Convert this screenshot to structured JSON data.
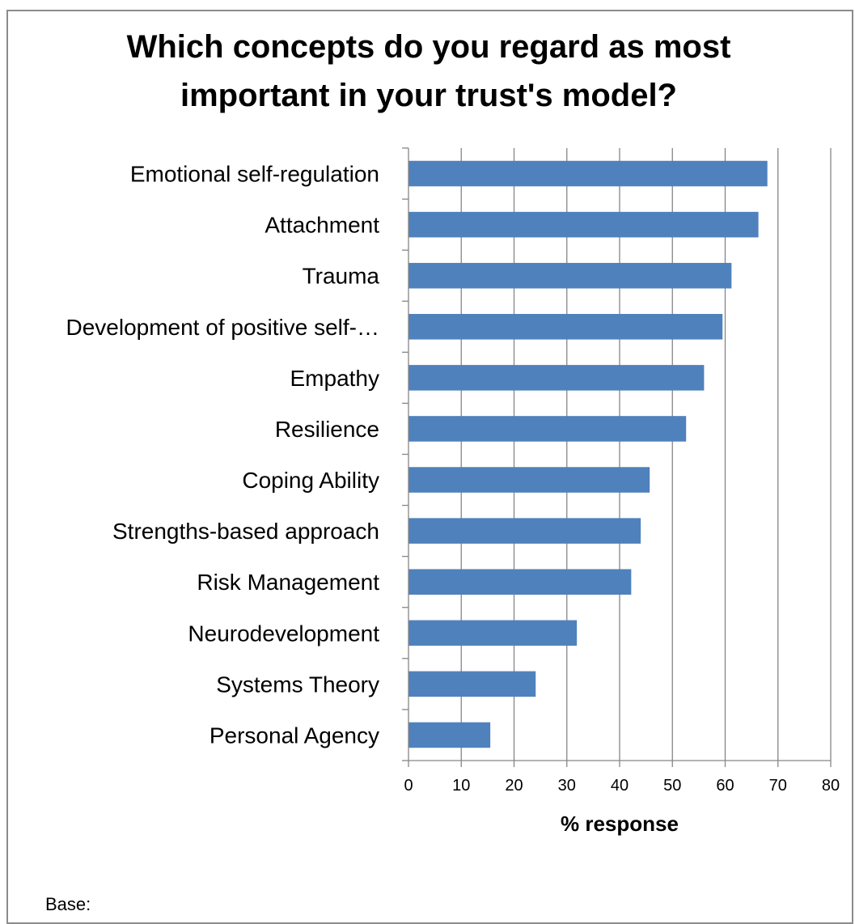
{
  "chart_data": {
    "type": "bar",
    "orientation": "horizontal",
    "title": "Which concepts do you regard as most important in your trust's model?",
    "xlabel": "% response",
    "ylabel": "",
    "xlim": [
      0,
      80
    ],
    "xticks": [
      "0",
      "10",
      "20",
      "30",
      "40",
      "50",
      "60",
      "70",
      "80"
    ],
    "grid": "vertical",
    "categories": [
      "Emotional self-regulation",
      "Attachment",
      "Trauma",
      "Development of positive self-…",
      "Empathy",
      "Resilience",
      "Coping Ability",
      "Strengths-based approach",
      "Risk Management",
      "Neurodevelopment",
      "Systems Theory",
      "Personal Agency"
    ],
    "values": [
      68,
      66.3,
      61.2,
      59.5,
      56,
      52.6,
      45.7,
      44,
      42.2,
      31.9,
      24.1,
      15.5
    ],
    "bar_color": "#4f81bd",
    "grid_color": "#868686"
  },
  "footer": {
    "base_note": "Base:"
  }
}
